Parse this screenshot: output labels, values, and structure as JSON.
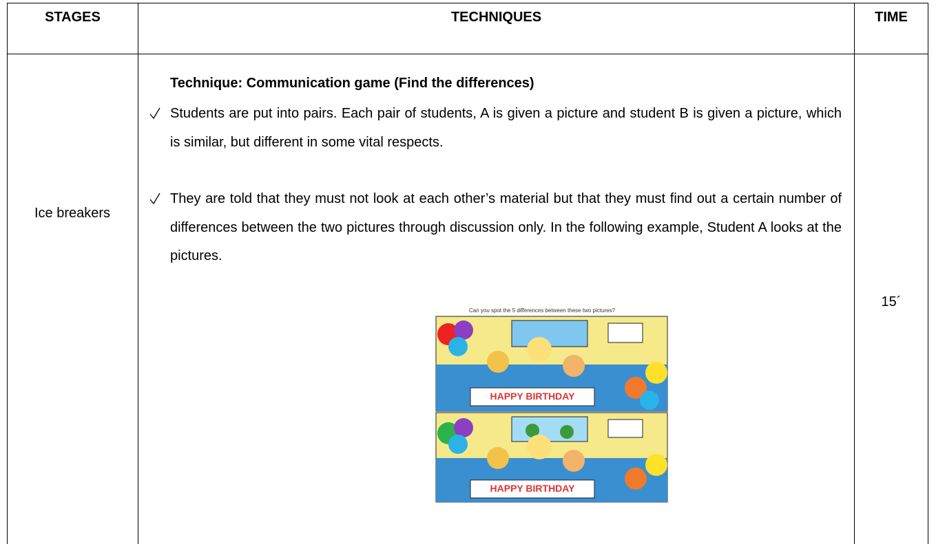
{
  "table": {
    "header": [
      "STAGES",
      "TECHNIQUES",
      "TIME"
    ],
    "rows": [
      {
        "stage": "Ice breakers",
        "technique_title": "Technique: Communication game (Find the differences)",
        "items": [
          "Students are put into pairs. Each pair of students, A is given a picture and student B is given a picture, which is similar, but different in some vital respects.",
          "They are told that they must not look at each other’s material but that they must find out a certain number of differences between the two pictures through discussion only. In the following example, Student A looks at the pictures."
        ],
        "picture": {
          "caption": "Can you spot the 5 differences between these two pictures?",
          "banners": [
            "HAPPY BIRTHDAY",
            "HAPPY BIRTHDAY"
          ]
        },
        "time": "15´"
      }
    ]
  }
}
